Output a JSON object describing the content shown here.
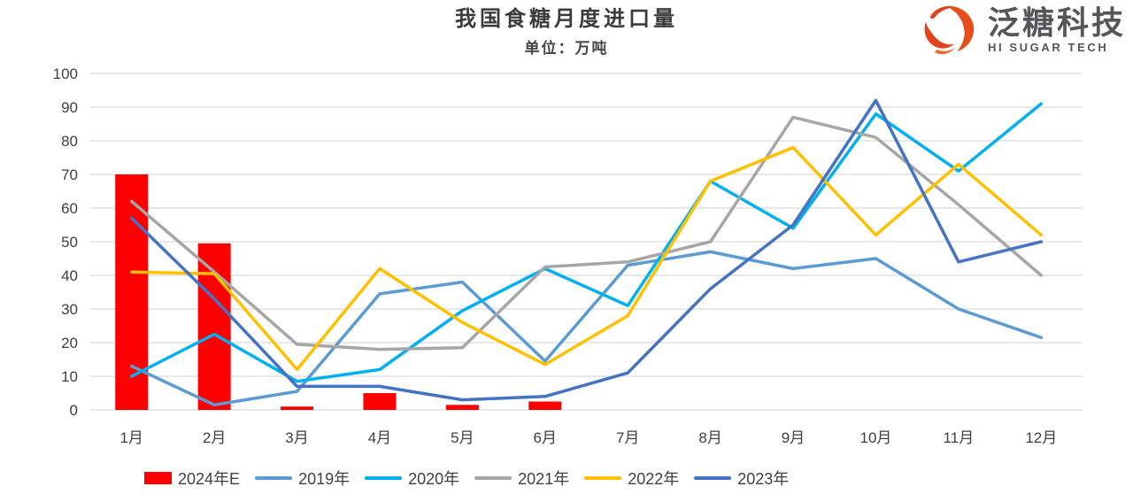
{
  "logo": {
    "brand_cn": "泛糖科技",
    "brand_en": "HI SUGAR TECH",
    "icon": "swirl-sphere-icon",
    "icon_color": "#e2431c",
    "text_color": "#55565a"
  },
  "chart_data": {
    "type": "combo_bar_line",
    "title": "我国食糖月度进口量",
    "unit_label": "单位：万吨",
    "categories": [
      "1月",
      "2月",
      "3月",
      "4月",
      "5月",
      "6月",
      "7月",
      "8月",
      "9月",
      "10月",
      "11月",
      "12月"
    ],
    "xlabel": "",
    "ylabel": "万吨",
    "ylim": [
      0,
      100
    ],
    "yticks": [
      0,
      10,
      20,
      30,
      40,
      50,
      60,
      70,
      80,
      90,
      100
    ],
    "grid": true,
    "legend_position": "bottom",
    "gridline_color": "#d9d9d9",
    "axis_label_color": "#3f3f3f",
    "series": [
      {
        "name": "2024年E",
        "type": "bar",
        "color": "#FF0000",
        "values": [
          70,
          49.5,
          1,
          5,
          1.5,
          2.5,
          null,
          null,
          null,
          null,
          null,
          null
        ]
      },
      {
        "name": "2019年",
        "type": "line",
        "color": "#5B9BD5",
        "values": [
          13,
          1.5,
          5.5,
          34.5,
          38,
          14.5,
          43,
          47,
          42,
          45,
          30,
          21.5
        ]
      },
      {
        "name": "2020年",
        "type": "line",
        "color": "#00B0F0",
        "values": [
          10,
          22.5,
          8.5,
          12,
          29.5,
          42,
          31,
          68,
          54,
          88,
          71,
          91
        ]
      },
      {
        "name": "2021年",
        "type": "line",
        "color": "#A6A6A6",
        "values": [
          62,
          41,
          19.5,
          18,
          18.5,
          42.5,
          44,
          50,
          87,
          81,
          61,
          40
        ]
      },
      {
        "name": "2022年",
        "type": "line",
        "color": "#FFC000",
        "values": [
          41,
          40.5,
          12,
          42,
          26,
          13.5,
          28,
          68,
          78,
          52,
          73,
          52
        ]
      },
      {
        "name": "2023年",
        "type": "line",
        "color": "#4472C4",
        "values": [
          57,
          33,
          7,
          7,
          3,
          4,
          11,
          36,
          55,
          92,
          44,
          50
        ]
      }
    ]
  }
}
